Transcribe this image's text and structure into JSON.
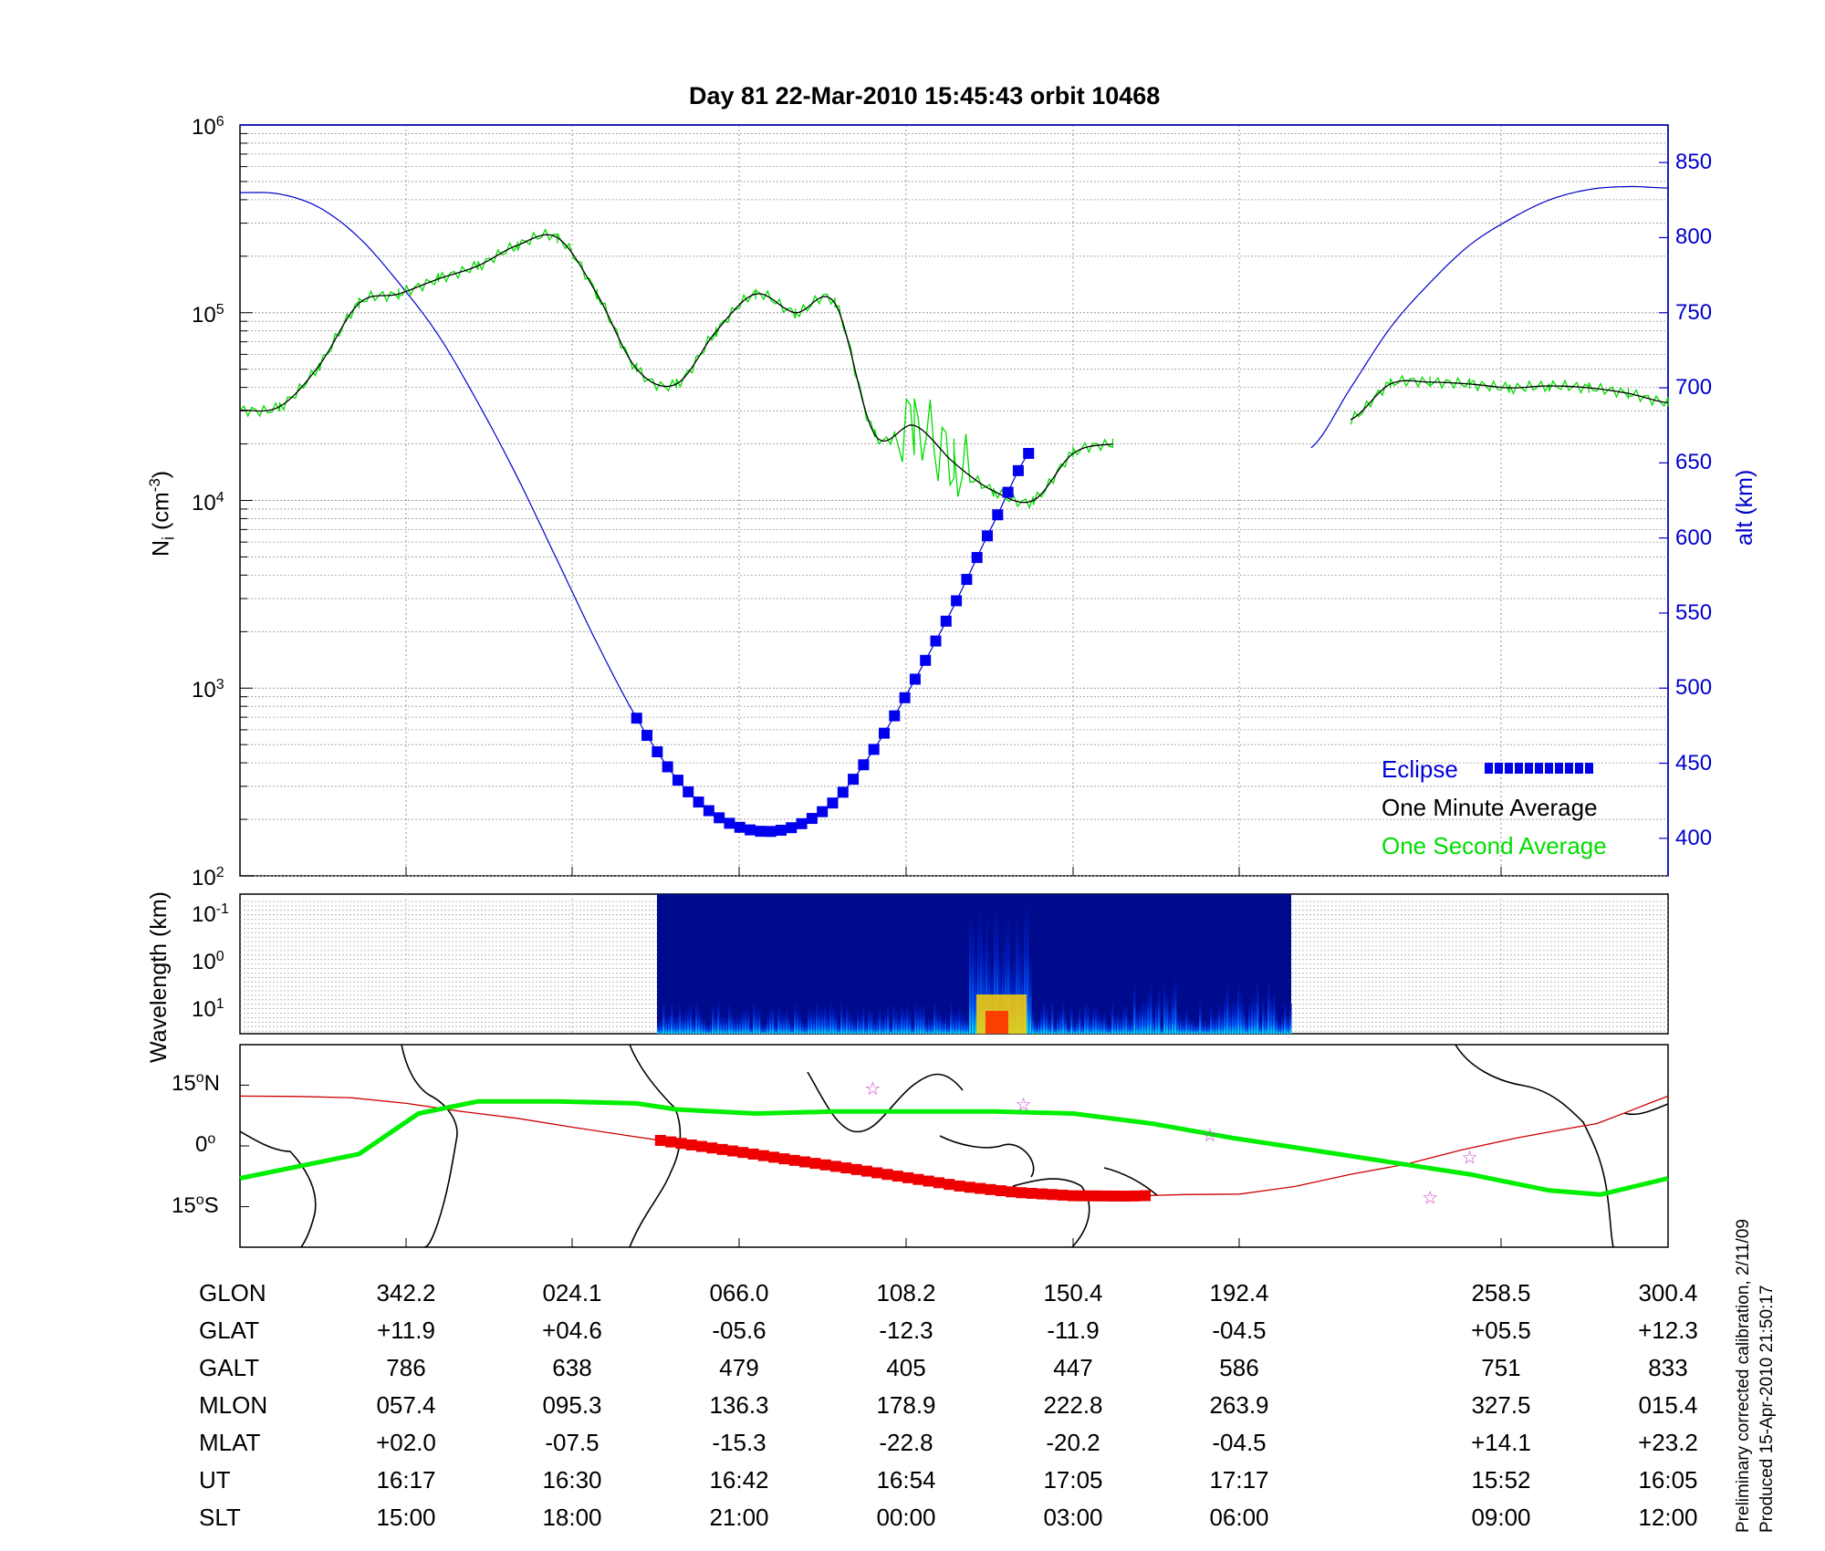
{
  "title": "Day 81  22-Mar-2010 15:45:43   orbit 10468",
  "top_panel": {
    "ylabel_left": "N",
    "ylabel_left_sub": "i",
    "ylabel_left_unit": " (cm",
    "ylabel_left_unit_sup": "-3",
    "ylabel_left_unit_end": ")",
    "ylabel_right": "alt (km)",
    "left_ticks": [
      {
        "base": "10",
        "exp": "6"
      },
      {
        "base": "10",
        "exp": "5"
      },
      {
        "base": "10",
        "exp": "4"
      },
      {
        "base": "10",
        "exp": "3"
      },
      {
        "base": "10",
        "exp": "2"
      }
    ],
    "right_ticks": [
      "850",
      "800",
      "750",
      "700",
      "650",
      "600",
      "550",
      "500",
      "450",
      "400"
    ],
    "legend": {
      "eclipse": "Eclipse",
      "minute": "One Minute Average",
      "second": "One Second Average"
    },
    "colors": {
      "altitude": "#0000cc",
      "minute": "#000000",
      "second": "#00dd00",
      "eclipse": "#0000ee"
    }
  },
  "mid_panel": {
    "ylabel": "Wavelength (km)",
    "ticks": [
      {
        "base": "10",
        "exp": "-1"
      },
      {
        "base": "10",
        "exp": "0"
      },
      {
        "base": "10",
        "exp": "1"
      }
    ]
  },
  "map_panel": {
    "ticks": [
      {
        "value": "15",
        "deg": "o",
        "hemi": "N"
      },
      {
        "value": "0",
        "deg": "o",
        "hemi": ""
      },
      {
        "value": "15",
        "deg": "o",
        "hemi": "S"
      }
    ],
    "colors": {
      "orbit": "#cc0000",
      "eclipse": "#ee0000",
      "magnetic_equator": "#00ee00",
      "stars": "#cc44cc"
    }
  },
  "table": {
    "row_labels": [
      "GLON",
      "GLAT",
      "GALT",
      "MLON",
      "MLAT",
      "UT",
      "SLT"
    ],
    "columns": [
      [
        "342.2",
        "+11.9",
        "786",
        "057.4",
        "+02.0",
        "16:17",
        "15:00"
      ],
      [
        "024.1",
        "+04.6",
        "638",
        "095.3",
        "-07.5",
        "16:30",
        "18:00"
      ],
      [
        "066.0",
        "-05.6",
        "479",
        "136.3",
        "-15.3",
        "16:42",
        "21:00"
      ],
      [
        "108.2",
        "-12.3",
        "405",
        "178.9",
        "-22.8",
        "16:54",
        "00:00"
      ],
      [
        "150.4",
        "-11.9",
        "447",
        "222.8",
        "-20.2",
        "17:05",
        "03:00"
      ],
      [
        "192.4",
        "-04.5",
        "586",
        "263.9",
        "-04.5",
        "17:17",
        "06:00"
      ],
      [
        "258.5",
        "+05.5",
        "751",
        "327.5",
        "+14.1",
        "15:52",
        "09:00"
      ],
      [
        "300.4",
        "+12.3",
        "833",
        "015.4",
        "+23.2",
        "16:05",
        "12:00"
      ]
    ]
  },
  "side_note": {
    "line1": "Preliminary corrected calibration, 2/11/09",
    "line2": "Produced 15-Apr-2010 21:50:17"
  },
  "chart_data": [
    {
      "type": "line",
      "name_hint": "ion density and altitude",
      "x": [
        0,
        10,
        20,
        30,
        40,
        50,
        60,
        70,
        80,
        90,
        100,
        110,
        120,
        130,
        140,
        150,
        160,
        170,
        180,
        190,
        200,
        210,
        220,
        230,
        240,
        250,
        260,
        270,
        280,
        290,
        300,
        310,
        320,
        330,
        340,
        350,
        360
      ],
      "xlim": [
        0,
        360
      ],
      "density_log10": [
        4.48,
        4.5,
        4.72,
        5.05,
        5.1,
        5.18,
        5.25,
        5.36,
        5.4,
        5.1,
        4.7,
        4.62,
        4.9,
        5.1,
        5.0,
        5.05,
        4.35,
        4.4,
        4.2,
        4.05,
        4.0,
        4.25,
        4.3,
        null,
        null,
        null,
        null,
        null,
        4.43,
        4.62,
        4.63,
        4.62,
        4.6,
        4.61,
        4.6,
        4.57,
        4.52
      ],
      "ylim_log10": [
        2,
        6
      ],
      "altitude_km": [
        830,
        829,
        820,
        800,
        770,
        735,
        690,
        640,
        585,
        530,
        480,
        440,
        415,
        405,
        408,
        425,
        460,
        505,
        555,
        610,
        660,
        null,
        null,
        null,
        null,
        null,
        null,
        660,
        700,
        740,
        770,
        795,
        812,
        825,
        832,
        834,
        833
      ],
      "alt_range_km": [
        375,
        875
      ],
      "eclipse_x": [
        100,
        218
      ],
      "legend_entries": [
        "Eclipse",
        "One Minute Average",
        "One Second Average"
      ],
      "legend_position": "bottom-right",
      "grid": true
    },
    {
      "type": "heatmap",
      "ylabel": "Wavelength (km)",
      "data_x_range": [
        100,
        260
      ],
      "peak_x": [
        172,
        182
      ]
    },
    {
      "type": "line",
      "name_hint": "ground track",
      "xlim": [
        0,
        360
      ],
      "ylim": [
        -25,
        25
      ],
      "orbit_lat": [
        12.3,
        12.2,
        11.9,
        10.5,
        8.5,
        6.8,
        4.6,
        2.5,
        0.5,
        -1.5,
        -3.6,
        -5.6,
        -7.8,
        -10.0,
        -11.5,
        -12.3,
        -12.4,
        -12.0,
        -11.9,
        -10.0,
        -7.0,
        -4.5,
        -1.0,
        2.0,
        4.5,
        5.5,
        8.5,
        10.8,
        12.3
      ],
      "orbit_lon": [
        0,
        15,
        28,
        42,
        56,
        70,
        84,
        98,
        112,
        126,
        140,
        154,
        168,
        182,
        196,
        210,
        224,
        238,
        252,
        266,
        280,
        294,
        308,
        322,
        336,
        342,
        350,
        356,
        360
      ],
      "mag_equator_lat": [
        -8,
        -2,
        8,
        11,
        11,
        10.5,
        9,
        8,
        8.5,
        8.5,
        8.5,
        8,
        5.5,
        2,
        -1,
        -4,
        -7,
        -11,
        -12,
        -8
      ],
      "mag_equator_lon": [
        0,
        30,
        45,
        60,
        80,
        100,
        110,
        130,
        150,
        170,
        190,
        210,
        230,
        250,
        270,
        290,
        310,
        330,
        343,
        360
      ],
      "eclipse_lon": [
        106,
        230
      ]
    }
  ]
}
